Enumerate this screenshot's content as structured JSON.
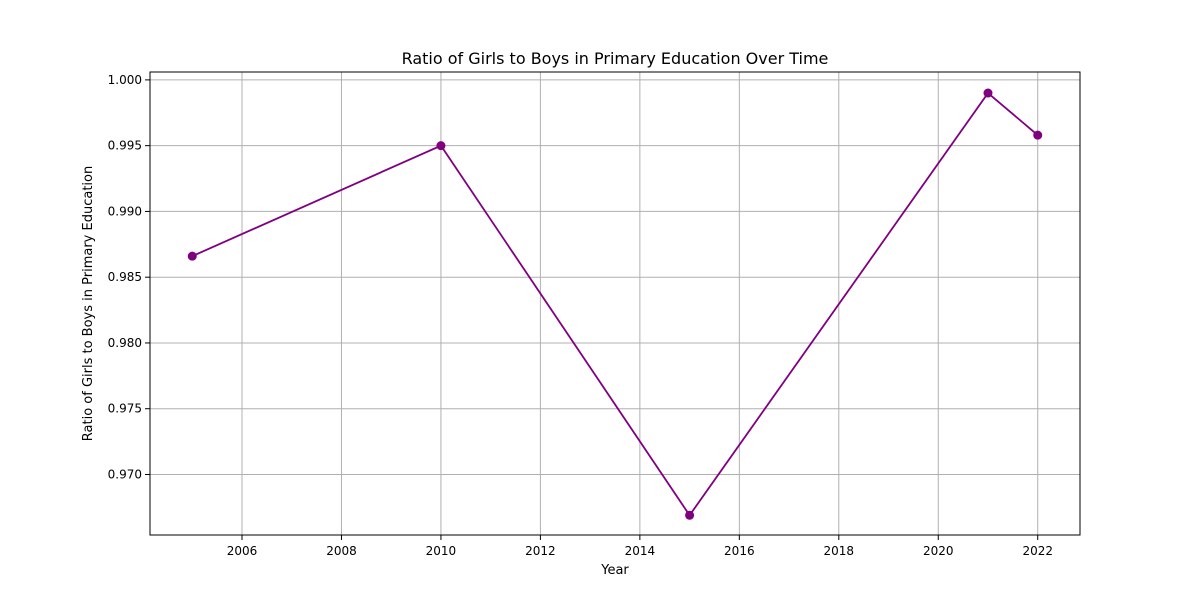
{
  "chart_data": {
    "type": "line",
    "title": "Ratio of Girls to Boys in Primary Education Over Time",
    "xlabel": "Year",
    "ylabel": "Ratio of Girls to Boys in Primary Education",
    "x": [
      2005,
      2010,
      2015,
      2021,
      2022
    ],
    "series": [
      {
        "values": [
          0.9866,
          0.995,
          0.9669,
          0.999,
          0.9958
        ],
        "color": "#800080",
        "marker": "circle"
      }
    ],
    "xlim": [
      2004.15,
      2022.85
    ],
    "ylim": [
      0.9654,
      1.0006
    ],
    "xticks": [
      2006,
      2008,
      2010,
      2012,
      2014,
      2016,
      2018,
      2020,
      2022
    ],
    "yticks": [
      0.97,
      0.975,
      0.98,
      0.985,
      0.99,
      0.995,
      1.0
    ],
    "xtick_labels": [
      "2006",
      "2008",
      "2010",
      "2012",
      "2014",
      "2016",
      "2018",
      "2020",
      "2022"
    ],
    "ytick_labels": [
      "0.970",
      "0.975",
      "0.980",
      "0.985",
      "0.990",
      "0.995",
      "1.000"
    ],
    "grid": true,
    "grid_color": "#b0b0b0"
  }
}
